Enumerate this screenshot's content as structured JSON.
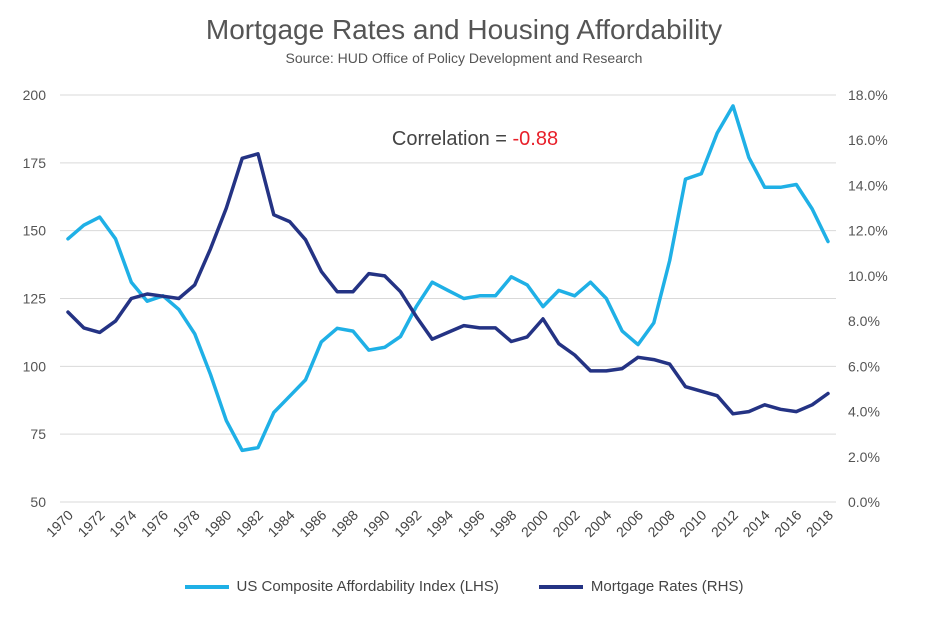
{
  "chart_data": {
    "type": "line",
    "title": "Mortgage Rates and Housing Affordability",
    "subtitle": "Source: HUD Office of Policy Development and Research",
    "annotation": {
      "prefix": "Correlation = ",
      "value": "-0.88",
      "value_color": "#e8202a"
    },
    "x": [
      1970,
      1971,
      1972,
      1973,
      1974,
      1975,
      1976,
      1977,
      1978,
      1979,
      1980,
      1981,
      1982,
      1983,
      1984,
      1985,
      1986,
      1987,
      1988,
      1989,
      1990,
      1991,
      1992,
      1993,
      1994,
      1995,
      1996,
      1997,
      1998,
      1999,
      2000,
      2001,
      2002,
      2003,
      2004,
      2005,
      2006,
      2007,
      2008,
      2009,
      2010,
      2011,
      2012,
      2013,
      2014,
      2015,
      2016,
      2017,
      2018
    ],
    "x_tick_labels": [
      "1970",
      "1972",
      "1974",
      "1976",
      "1978",
      "1980",
      "1982",
      "1984",
      "1986",
      "1988",
      "1990",
      "1992",
      "1994",
      "1996",
      "1998",
      "2000",
      "2002",
      "2004",
      "2006",
      "2008",
      "2010",
      "2012",
      "2014",
      "2016",
      "2018"
    ],
    "y_left": {
      "range": [
        50,
        200
      ],
      "ticks": [
        "50",
        "75",
        "100",
        "125",
        "150",
        "175",
        "200"
      ]
    },
    "y_right": {
      "range": [
        0,
        18
      ],
      "ticks": [
        "0.0%",
        "2.0%",
        "4.0%",
        "6.0%",
        "8.0%",
        "10.0%",
        "12.0%",
        "14.0%",
        "16.0%",
        "18.0%"
      ]
    },
    "series": [
      {
        "name": "US Composite Affordability Index (LHS)",
        "axis": "left",
        "color": "#1fb0e6",
        "values": [
          147,
          152,
          155,
          147,
          131,
          124,
          126,
          121,
          112,
          97,
          80,
          69,
          70,
          83,
          89,
          95,
          109,
          114,
          113,
          106,
          107,
          111,
          122,
          131,
          128,
          125,
          126,
          126,
          133,
          130,
          122,
          128,
          126,
          131,
          125,
          113,
          108,
          116,
          139,
          169,
          171,
          186,
          196,
          177,
          166,
          166,
          167,
          158,
          146
        ]
      },
      {
        "name": "Mortgage Rates (RHS)",
        "axis": "right",
        "color": "#243384",
        "values": [
          8.4,
          7.7,
          7.5,
          8.0,
          9.0,
          9.2,
          9.1,
          9.0,
          9.6,
          11.2,
          13.0,
          15.2,
          15.4,
          12.7,
          12.4,
          11.6,
          10.2,
          9.3,
          9.3,
          10.1,
          10.0,
          9.3,
          8.2,
          7.2,
          7.5,
          7.8,
          7.7,
          7.7,
          7.1,
          7.3,
          8.1,
          7.0,
          6.5,
          5.8,
          5.8,
          5.9,
          6.4,
          6.3,
          6.1,
          5.1,
          4.9,
          4.7,
          3.9,
          4.0,
          4.3,
          4.1,
          4.0,
          4.3,
          4.8
        ]
      }
    ]
  }
}
